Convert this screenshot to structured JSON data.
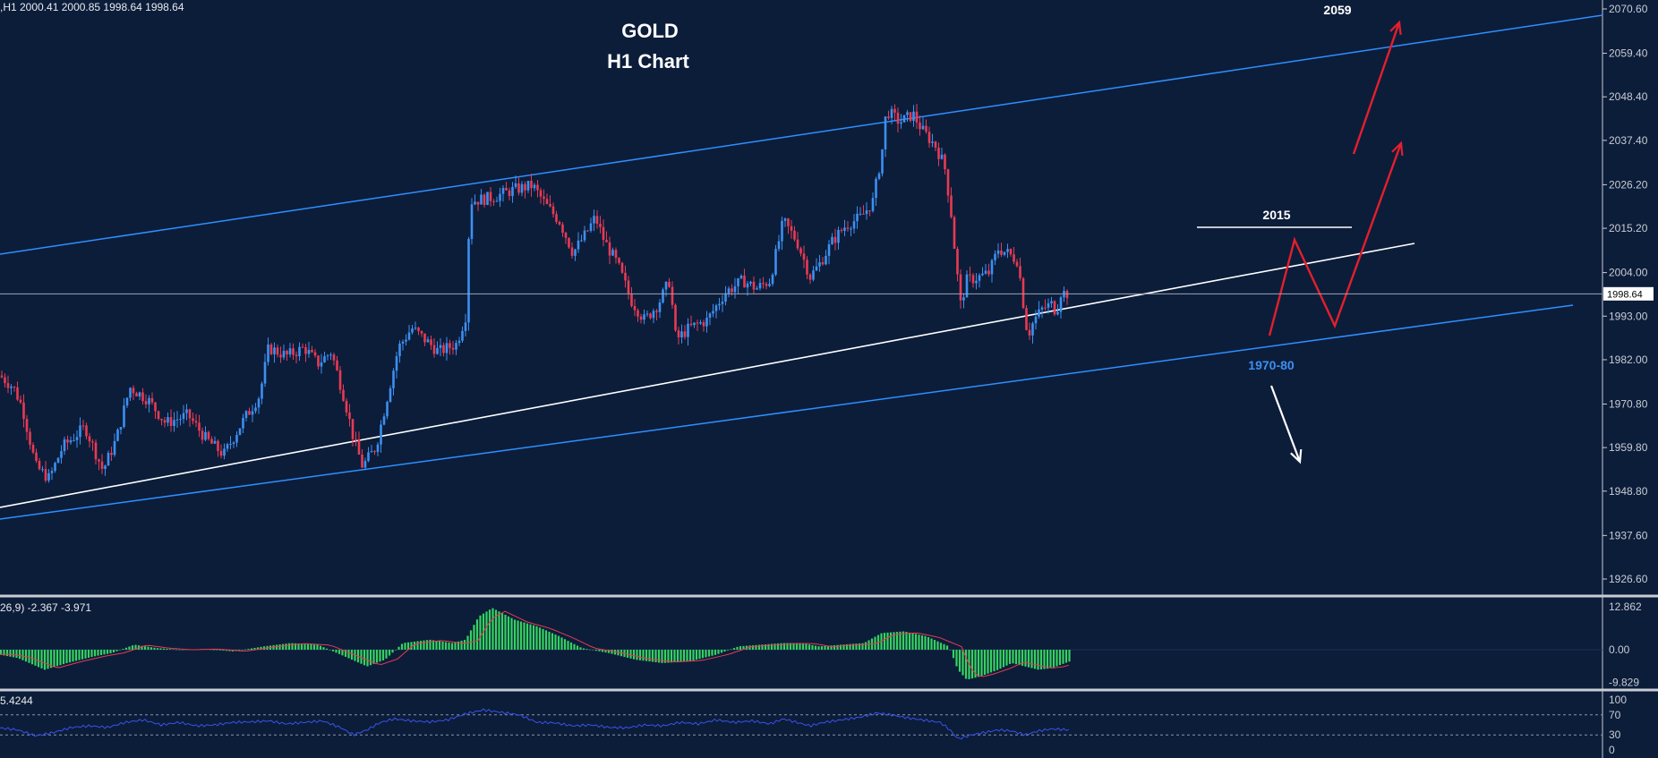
{
  "header": {
    "symbol_info": ",H1  2000.41 2000.85 1998.64 1998.64",
    "title_line1": "GOLD",
    "title_line2": "H1 Chart"
  },
  "colors": {
    "background": "#0c1d3a",
    "bull_candle": "#3d8ff0",
    "bear_candle": "#e83a52",
    "channel_line": "#2f8fff",
    "trend_line": "#ffffff",
    "projection_arrow": "#e41f2c",
    "macd_histogram": "#35d35f",
    "macd_signal": "#e83a52",
    "rsi_line": "#3a52e8",
    "axis_text": "#c8ccd4",
    "level_label_blue": "#3d8ff0"
  },
  "price_axis": {
    "ticks": [
      2070.6,
      2059.4,
      2048.4,
      2037.4,
      2026.2,
      2015.2,
      2004.0,
      1993.0,
      1982.0,
      1970.8,
      1959.8,
      1948.8,
      1937.6,
      1926.6
    ],
    "labels": [
      "2070.60",
      "2059.40",
      "2048.40",
      "2037.40",
      "2026.20",
      "2015.20",
      "2004.00",
      "1993.00",
      "1982.00",
      "1970.80",
      "1959.80",
      "1948.80",
      "1937.60",
      "1926.60"
    ],
    "current_price": 1998.64,
    "current_price_label": "1998.64"
  },
  "annotations": {
    "target_high": "2059",
    "resistance": "2015",
    "support_zone": "1970-80"
  },
  "macd": {
    "header": "26,9) -2.367 -3.971",
    "axis_labels": [
      "12.862",
      "0.00",
      "-9.829"
    ],
    "max": 12.862,
    "min": -9.829
  },
  "rsi": {
    "header": "5.4244",
    "axis_labels": [
      "100",
      "70",
      "30",
      "0"
    ]
  },
  "chart_data": {
    "type": "candlestick",
    "timeframe": "H1",
    "title": "GOLD",
    "subtitle": "H1 Chart",
    "ylim": [
      1919,
      2075
    ],
    "last_close": 1998.64,
    "close_path": [
      [
        0,
        1978
      ],
      [
        15,
        1975
      ],
      [
        25,
        1970
      ],
      [
        40,
        1955
      ],
      [
        55,
        1952
      ],
      [
        70,
        1960
      ],
      [
        95,
        1965
      ],
      [
        115,
        1954
      ],
      [
        130,
        1962
      ],
      [
        145,
        1975
      ],
      [
        165,
        1972
      ],
      [
        185,
        1966
      ],
      [
        210,
        1968
      ],
      [
        230,
        1962
      ],
      [
        250,
        1958
      ],
      [
        270,
        1966
      ],
      [
        290,
        1973
      ],
      [
        300,
        1985
      ],
      [
        320,
        1983
      ],
      [
        340,
        1985
      ],
      [
        355,
        1981
      ],
      [
        370,
        1984
      ],
      [
        385,
        1972
      ],
      [
        395,
        1962
      ],
      [
        405,
        1955
      ],
      [
        420,
        1960
      ],
      [
        435,
        1975
      ],
      [
        445,
        1985
      ],
      [
        460,
        1990
      ],
      [
        475,
        1987
      ],
      [
        490,
        1984
      ],
      [
        510,
        1986
      ],
      [
        520,
        1993
      ],
      [
        525,
        2022
      ],
      [
        550,
        2023
      ],
      [
        575,
        2025
      ],
      [
        595,
        2026
      ],
      [
        610,
        2021
      ],
      [
        625,
        2017
      ],
      [
        640,
        2009
      ],
      [
        655,
        2014
      ],
      [
        665,
        2018
      ],
      [
        675,
        2012
      ],
      [
        690,
        2006
      ],
      [
        705,
        1997
      ],
      [
        720,
        1992
      ],
      [
        735,
        1996
      ],
      [
        748,
        2002
      ],
      [
        755,
        1987
      ],
      [
        770,
        1990
      ],
      [
        790,
        1992
      ],
      [
        810,
        1999
      ],
      [
        830,
        2002
      ],
      [
        845,
        2000
      ],
      [
        860,
        2002
      ],
      [
        875,
        2017
      ],
      [
        890,
        2012
      ],
      [
        905,
        2003
      ],
      [
        915,
        2006
      ],
      [
        930,
        2012
      ],
      [
        945,
        2016
      ],
      [
        962,
        2018
      ],
      [
        975,
        2022
      ],
      [
        985,
        2034
      ],
      [
        990,
        2045
      ],
      [
        1005,
        2042
      ],
      [
        1020,
        2044
      ],
      [
        1030,
        2040
      ],
      [
        1045,
        2036
      ],
      [
        1055,
        2031
      ],
      [
        1062,
        2020
      ],
      [
        1068,
        2006
      ],
      [
        1073,
        1996
      ],
      [
        1080,
        2002
      ],
      [
        1095,
        2003
      ],
      [
        1105,
        2004
      ],
      [
        1115,
        2010
      ],
      [
        1125,
        2009
      ],
      [
        1137,
        2007
      ],
      [
        1142,
        1998
      ],
      [
        1148,
        1988
      ],
      [
        1155,
        1992
      ],
      [
        1165,
        1995
      ],
      [
        1175,
        1996
      ],
      [
        1180,
        1994
      ],
      [
        1185,
        1999
      ],
      [
        1195,
        1998.64
      ]
    ],
    "resistance_level": 2015,
    "target_level": 2059,
    "support_zone": "1970-80",
    "macd_path": [
      [
        0,
        -1.5
      ],
      [
        20,
        -2.5
      ],
      [
        50,
        -6
      ],
      [
        75,
        -4
      ],
      [
        105,
        -2
      ],
      [
        125,
        -1
      ],
      [
        150,
        1.5
      ],
      [
        175,
        0.5
      ],
      [
        200,
        0
      ],
      [
        230,
        0.2
      ],
      [
        260,
        -0.5
      ],
      [
        295,
        1
      ],
      [
        325,
        2
      ],
      [
        355,
        1.5
      ],
      [
        385,
        -2
      ],
      [
        410,
        -5
      ],
      [
        430,
        -3
      ],
      [
        450,
        2
      ],
      [
        480,
        3
      ],
      [
        505,
        2
      ],
      [
        520,
        3
      ],
      [
        535,
        10
      ],
      [
        550,
        12.5
      ],
      [
        575,
        9
      ],
      [
        600,
        7
      ],
      [
        625,
        4
      ],
      [
        650,
        0.5
      ],
      [
        680,
        -1
      ],
      [
        710,
        -3
      ],
      [
        740,
        -4
      ],
      [
        770,
        -3.5
      ],
      [
        800,
        -1.5
      ],
      [
        825,
        1
      ],
      [
        850,
        1.5
      ],
      [
        875,
        2
      ],
      [
        895,
        2
      ],
      [
        915,
        1
      ],
      [
        940,
        1.5
      ],
      [
        965,
        2
      ],
      [
        985,
        5
      ],
      [
        1010,
        5.5
      ],
      [
        1035,
        4
      ],
      [
        1060,
        1
      ],
      [
        1070,
        -6
      ],
      [
        1080,
        -9
      ],
      [
        1095,
        -8
      ],
      [
        1115,
        -6
      ],
      [
        1130,
        -4
      ],
      [
        1145,
        -5
      ],
      [
        1160,
        -6
      ],
      [
        1175,
        -5.5
      ],
      [
        1195,
        -3.5
      ]
    ],
    "rsi_path": [
      [
        0,
        44
      ],
      [
        20,
        40
      ],
      [
        40,
        28
      ],
      [
        60,
        35
      ],
      [
        80,
        45
      ],
      [
        100,
        48
      ],
      [
        120,
        45
      ],
      [
        140,
        55
      ],
      [
        160,
        60
      ],
      [
        180,
        50
      ],
      [
        200,
        55
      ],
      [
        220,
        48
      ],
      [
        240,
        50
      ],
      [
        260,
        55
      ],
      [
        280,
        56
      ],
      [
        300,
        58
      ],
      [
        320,
        52
      ],
      [
        340,
        55
      ],
      [
        360,
        58
      ],
      [
        380,
        45
      ],
      [
        395,
        30
      ],
      [
        410,
        40
      ],
      [
        425,
        55
      ],
      [
        440,
        62
      ],
      [
        460,
        58
      ],
      [
        480,
        56
      ],
      [
        500,
        60
      ],
      [
        520,
        72
      ],
      [
        540,
        80
      ],
      [
        560,
        75
      ],
      [
        580,
        70
      ],
      [
        600,
        55
      ],
      [
        620,
        54
      ],
      [
        640,
        48
      ],
      [
        660,
        50
      ],
      [
        680,
        45
      ],
      [
        700,
        44
      ],
      [
        720,
        50
      ],
      [
        740,
        48
      ],
      [
        760,
        55
      ],
      [
        780,
        52
      ],
      [
        800,
        60
      ],
      [
        820,
        55
      ],
      [
        840,
        58
      ],
      [
        860,
        52
      ],
      [
        875,
        62
      ],
      [
        890,
        55
      ],
      [
        905,
        48
      ],
      [
        920,
        55
      ],
      [
        940,
        60
      ],
      [
        960,
        65
      ],
      [
        980,
        74
      ],
      [
        995,
        70
      ],
      [
        1010,
        65
      ],
      [
        1030,
        60
      ],
      [
        1050,
        55
      ],
      [
        1060,
        42
      ],
      [
        1070,
        22
      ],
      [
        1085,
        30
      ],
      [
        1100,
        35
      ],
      [
        1115,
        40
      ],
      [
        1130,
        38
      ],
      [
        1145,
        30
      ],
      [
        1160,
        38
      ],
      [
        1175,
        42
      ],
      [
        1195,
        40
      ]
    ]
  }
}
